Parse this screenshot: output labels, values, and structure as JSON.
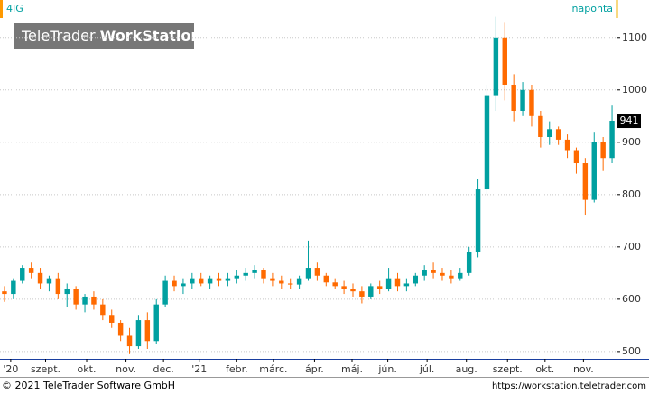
{
  "chart_data": {
    "type": "candlestick",
    "title": "4IG",
    "subtitle": "naponta",
    "up_color": "#00a0a0",
    "down_color": "#ff6a00",
    "grid": true,
    "ylim": [
      486,
      1172
    ],
    "yticks": [
      500,
      600,
      700,
      800,
      900,
      1000,
      1100
    ],
    "xlim": [
      0,
      69
    ],
    "xticks": [
      {
        "value": 1.2,
        "label": "'20"
      },
      {
        "value": 5.1,
        "label": "szept."
      },
      {
        "value": 9.7,
        "label": "okt."
      },
      {
        "value": 14.1,
        "label": "nov."
      },
      {
        "value": 18.3,
        "label": "dec."
      },
      {
        "value": 22.3,
        "label": "'21"
      },
      {
        "value": 26.5,
        "label": "febr."
      },
      {
        "value": 30.6,
        "label": "márc."
      },
      {
        "value": 35.2,
        "label": "ápr."
      },
      {
        "value": 39.4,
        "label": "máj."
      },
      {
        "value": 43.4,
        "label": "jún."
      },
      {
        "value": 47.8,
        "label": "júl."
      },
      {
        "value": 52.2,
        "label": "aug."
      },
      {
        "value": 56.8,
        "label": "szept."
      },
      {
        "value": 61,
        "label": "okt."
      },
      {
        "value": 65.3,
        "label": "nov."
      }
    ],
    "categories": [
      null,
      null,
      null,
      null,
      null,
      null,
      null,
      null,
      null,
      null,
      null,
      null,
      null,
      null,
      null,
      null,
      null,
      null,
      null,
      null,
      null,
      null,
      null,
      null,
      null,
      null,
      null,
      null,
      null,
      null,
      null,
      null,
      null,
      null,
      null,
      null,
      null,
      null,
      null,
      null,
      null,
      null,
      null,
      null,
      null,
      null,
      null,
      null,
      null,
      null,
      null,
      null,
      null,
      null,
      null,
      null,
      null,
      null,
      null,
      null,
      null,
      null,
      null,
      null,
      null,
      null,
      null,
      null,
      null
    ],
    "ohlc": [
      [
        615,
        625,
        595,
        610
      ],
      [
        610,
        640,
        600,
        635
      ],
      [
        635,
        665,
        630,
        660
      ],
      [
        660,
        670,
        640,
        650
      ],
      [
        650,
        660,
        620,
        630
      ],
      [
        630,
        645,
        615,
        640
      ],
      [
        640,
        650,
        600,
        610
      ],
      [
        610,
        630,
        585,
        620
      ],
      [
        620,
        625,
        580,
        590
      ],
      [
        590,
        610,
        575,
        605
      ],
      [
        605,
        615,
        580,
        590
      ],
      [
        590,
        600,
        560,
        570
      ],
      [
        570,
        580,
        545,
        555
      ],
      [
        555,
        560,
        520,
        530
      ],
      [
        530,
        545,
        495,
        510
      ],
      [
        510,
        570,
        505,
        560
      ],
      [
        560,
        575,
        505,
        520
      ],
      [
        520,
        600,
        515,
        590
      ],
      [
        590,
        645,
        585,
        635
      ],
      [
        635,
        645,
        615,
        625
      ],
      [
        625,
        640,
        610,
        630
      ],
      [
        630,
        650,
        620,
        640
      ],
      [
        640,
        650,
        625,
        630
      ],
      [
        630,
        645,
        620,
        640
      ],
      [
        640,
        650,
        625,
        635
      ],
      [
        635,
        650,
        625,
        640
      ],
      [
        640,
        655,
        630,
        645
      ],
      [
        645,
        660,
        635,
        650
      ],
      [
        650,
        665,
        640,
        655
      ],
      [
        655,
        660,
        630,
        640
      ],
      [
        640,
        650,
        625,
        635
      ],
      [
        635,
        645,
        620,
        630
      ],
      [
        630,
        640,
        620,
        628
      ],
      [
        628,
        645,
        620,
        640
      ],
      [
        640,
        712,
        635,
        660
      ],
      [
        660,
        670,
        635,
        645
      ],
      [
        645,
        650,
        625,
        632
      ],
      [
        632,
        640,
        620,
        625
      ],
      [
        625,
        635,
        610,
        620
      ],
      [
        620,
        630,
        605,
        615
      ],
      [
        615,
        625,
        592,
        605
      ],
      [
        605,
        630,
        600,
        625
      ],
      [
        625,
        635,
        610,
        620
      ],
      [
        620,
        660,
        615,
        640
      ],
      [
        640,
        650,
        615,
        625
      ],
      [
        625,
        640,
        615,
        630
      ],
      [
        630,
        650,
        625,
        645
      ],
      [
        645,
        665,
        635,
        655
      ],
      [
        655,
        670,
        640,
        650
      ],
      [
        650,
        660,
        635,
        645
      ],
      [
        645,
        655,
        630,
        640
      ],
      [
        640,
        660,
        635,
        650
      ],
      [
        650,
        700,
        645,
        690
      ],
      [
        690,
        830,
        680,
        810
      ],
      [
        810,
        1010,
        800,
        990
      ],
      [
        990,
        1140,
        960,
        1100
      ],
      [
        1100,
        1130,
        980,
        1010
      ],
      [
        1010,
        1030,
        940,
        960
      ],
      [
        960,
        1015,
        950,
        1000
      ],
      [
        1000,
        1010,
        930,
        950
      ],
      [
        950,
        960,
        890,
        910
      ],
      [
        910,
        940,
        895,
        925
      ],
      [
        925,
        930,
        895,
        905
      ],
      [
        905,
        915,
        870,
        885
      ],
      [
        885,
        890,
        840,
        860
      ],
      [
        860,
        870,
        760,
        790
      ],
      [
        790,
        920,
        785,
        900
      ],
      [
        900,
        910,
        845,
        870
      ],
      [
        870,
        970,
        860,
        941
      ]
    ]
  },
  "watermark": {
    "brand": "TeleTrader",
    "product": "WorkStation"
  },
  "footer": {
    "copyright": "© 2021 TeleTrader Software GmbH",
    "url": "https://workstation.teletrader.com"
  }
}
